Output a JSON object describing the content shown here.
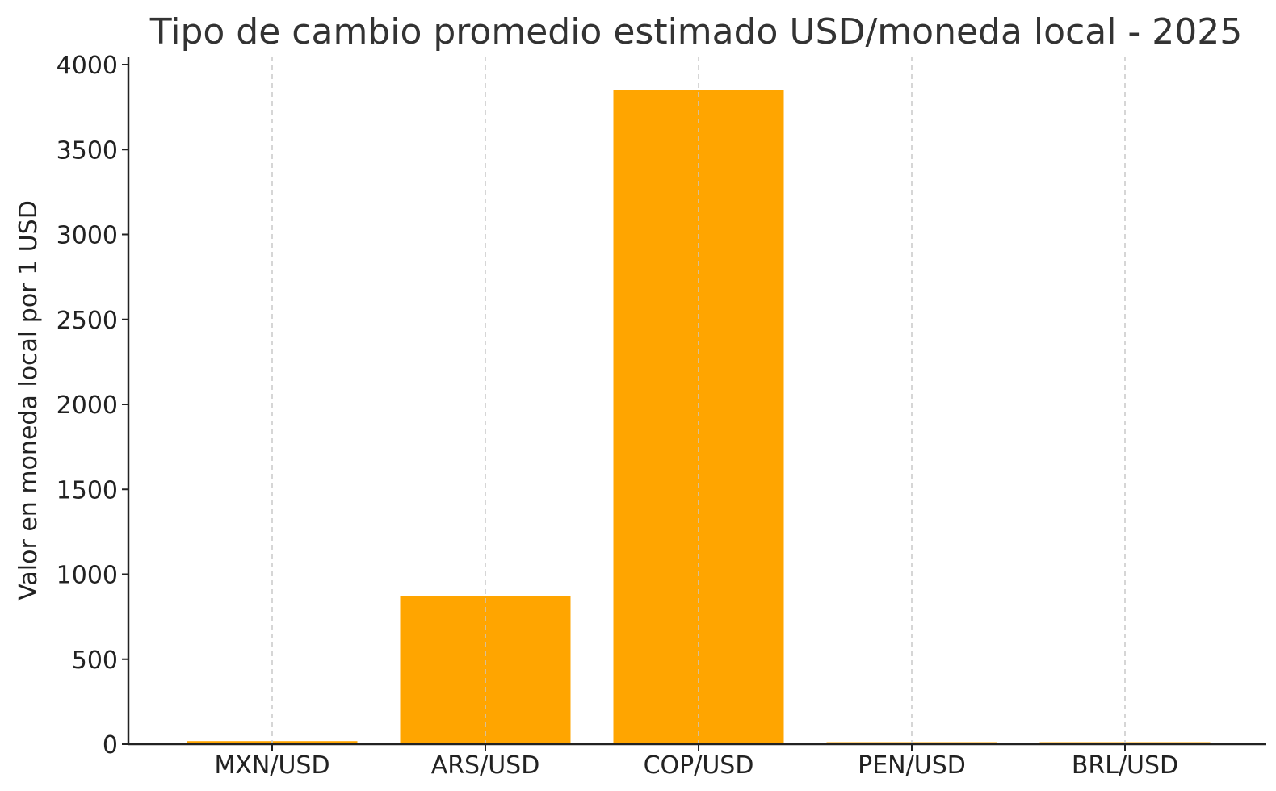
{
  "chart_data": {
    "type": "bar",
    "title": "Tipo de cambio promedio estimado USD/moneda local - 2025",
    "xlabel": "",
    "ylabel": "Valor en moneda local por 1 USD",
    "categories": [
      "MXN/USD",
      "ARS/USD",
      "COP/USD",
      "PEN/USD",
      "BRL/USD"
    ],
    "values": [
      18,
      870,
      3850,
      3.7,
      5.4
    ],
    "ylim": [
      0,
      4000
    ],
    "yticks": [
      0,
      500,
      1000,
      1500,
      2000,
      2500,
      3000,
      3500,
      4000
    ],
    "ytick_labels": [
      "0",
      "500",
      "1000",
      "1500",
      "2000",
      "2500",
      "3000",
      "3500",
      "4000"
    ],
    "grid": "vertical dashed",
    "bar_color": "#FFA500"
  }
}
